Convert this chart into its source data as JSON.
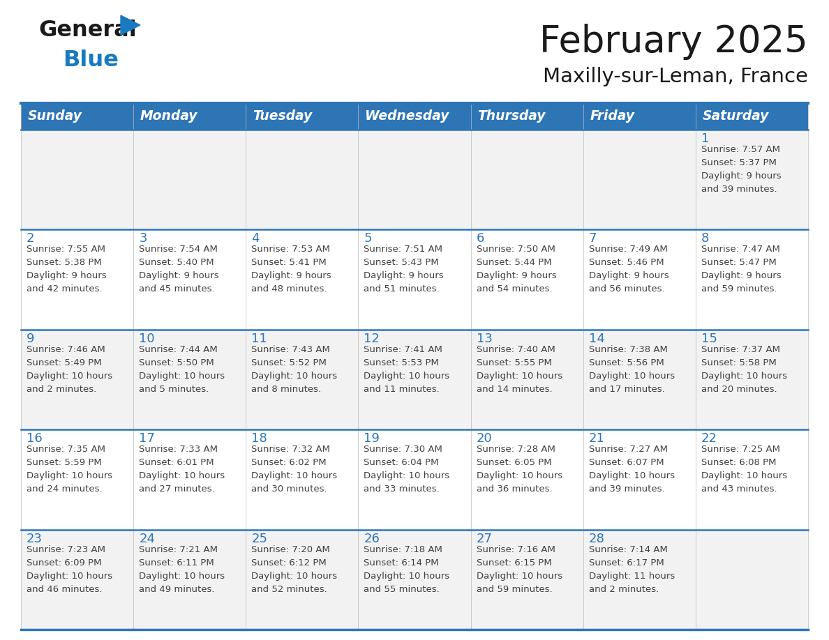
{
  "title": "February 2025",
  "subtitle": "Maxilly-sur-Leman, France",
  "header_bg_color": "#2E75B6",
  "header_text_color": "#FFFFFF",
  "cell_bg_odd": "#F2F2F2",
  "cell_bg_even": "#FFFFFF",
  "day_number_color": "#2E75B6",
  "info_text_color": "#404040",
  "border_color": "#2E75B6",
  "separator_color": "#2E75B6",
  "days_of_week": [
    "Sunday",
    "Monday",
    "Tuesday",
    "Wednesday",
    "Thursday",
    "Friday",
    "Saturday"
  ],
  "weeks": [
    [
      {
        "day": null,
        "info": null
      },
      {
        "day": null,
        "info": null
      },
      {
        "day": null,
        "info": null
      },
      {
        "day": null,
        "info": null
      },
      {
        "day": null,
        "info": null
      },
      {
        "day": null,
        "info": null
      },
      {
        "day": "1",
        "info": "Sunrise: 7:57 AM\nSunset: 5:37 PM\nDaylight: 9 hours\nand 39 minutes."
      }
    ],
    [
      {
        "day": "2",
        "info": "Sunrise: 7:55 AM\nSunset: 5:38 PM\nDaylight: 9 hours\nand 42 minutes."
      },
      {
        "day": "3",
        "info": "Sunrise: 7:54 AM\nSunset: 5:40 PM\nDaylight: 9 hours\nand 45 minutes."
      },
      {
        "day": "4",
        "info": "Sunrise: 7:53 AM\nSunset: 5:41 PM\nDaylight: 9 hours\nand 48 minutes."
      },
      {
        "day": "5",
        "info": "Sunrise: 7:51 AM\nSunset: 5:43 PM\nDaylight: 9 hours\nand 51 minutes."
      },
      {
        "day": "6",
        "info": "Sunrise: 7:50 AM\nSunset: 5:44 PM\nDaylight: 9 hours\nand 54 minutes."
      },
      {
        "day": "7",
        "info": "Sunrise: 7:49 AM\nSunset: 5:46 PM\nDaylight: 9 hours\nand 56 minutes."
      },
      {
        "day": "8",
        "info": "Sunrise: 7:47 AM\nSunset: 5:47 PM\nDaylight: 9 hours\nand 59 minutes."
      }
    ],
    [
      {
        "day": "9",
        "info": "Sunrise: 7:46 AM\nSunset: 5:49 PM\nDaylight: 10 hours\nand 2 minutes."
      },
      {
        "day": "10",
        "info": "Sunrise: 7:44 AM\nSunset: 5:50 PM\nDaylight: 10 hours\nand 5 minutes."
      },
      {
        "day": "11",
        "info": "Sunrise: 7:43 AM\nSunset: 5:52 PM\nDaylight: 10 hours\nand 8 minutes."
      },
      {
        "day": "12",
        "info": "Sunrise: 7:41 AM\nSunset: 5:53 PM\nDaylight: 10 hours\nand 11 minutes."
      },
      {
        "day": "13",
        "info": "Sunrise: 7:40 AM\nSunset: 5:55 PM\nDaylight: 10 hours\nand 14 minutes."
      },
      {
        "day": "14",
        "info": "Sunrise: 7:38 AM\nSunset: 5:56 PM\nDaylight: 10 hours\nand 17 minutes."
      },
      {
        "day": "15",
        "info": "Sunrise: 7:37 AM\nSunset: 5:58 PM\nDaylight: 10 hours\nand 20 minutes."
      }
    ],
    [
      {
        "day": "16",
        "info": "Sunrise: 7:35 AM\nSunset: 5:59 PM\nDaylight: 10 hours\nand 24 minutes."
      },
      {
        "day": "17",
        "info": "Sunrise: 7:33 AM\nSunset: 6:01 PM\nDaylight: 10 hours\nand 27 minutes."
      },
      {
        "day": "18",
        "info": "Sunrise: 7:32 AM\nSunset: 6:02 PM\nDaylight: 10 hours\nand 30 minutes."
      },
      {
        "day": "19",
        "info": "Sunrise: 7:30 AM\nSunset: 6:04 PM\nDaylight: 10 hours\nand 33 minutes."
      },
      {
        "day": "20",
        "info": "Sunrise: 7:28 AM\nSunset: 6:05 PM\nDaylight: 10 hours\nand 36 minutes."
      },
      {
        "day": "21",
        "info": "Sunrise: 7:27 AM\nSunset: 6:07 PM\nDaylight: 10 hours\nand 39 minutes."
      },
      {
        "day": "22",
        "info": "Sunrise: 7:25 AM\nSunset: 6:08 PM\nDaylight: 10 hours\nand 43 minutes."
      }
    ],
    [
      {
        "day": "23",
        "info": "Sunrise: 7:23 AM\nSunset: 6:09 PM\nDaylight: 10 hours\nand 46 minutes."
      },
      {
        "day": "24",
        "info": "Sunrise: 7:21 AM\nSunset: 6:11 PM\nDaylight: 10 hours\nand 49 minutes."
      },
      {
        "day": "25",
        "info": "Sunrise: 7:20 AM\nSunset: 6:12 PM\nDaylight: 10 hours\nand 52 minutes."
      },
      {
        "day": "26",
        "info": "Sunrise: 7:18 AM\nSunset: 6:14 PM\nDaylight: 10 hours\nand 55 minutes."
      },
      {
        "day": "27",
        "info": "Sunrise: 7:16 AM\nSunset: 6:15 PM\nDaylight: 10 hours\nand 59 minutes."
      },
      {
        "day": "28",
        "info": "Sunrise: 7:14 AM\nSunset: 6:17 PM\nDaylight: 11 hours\nand 2 minutes."
      },
      {
        "day": null,
        "info": null
      }
    ]
  ],
  "logo_color_general": "#1a1a1a",
  "logo_color_blue": "#1a7abf",
  "title_fontsize": 38,
  "subtitle_fontsize": 21,
  "header_fontsize": 13.5,
  "day_num_fontsize": 13,
  "info_fontsize": 9.5
}
